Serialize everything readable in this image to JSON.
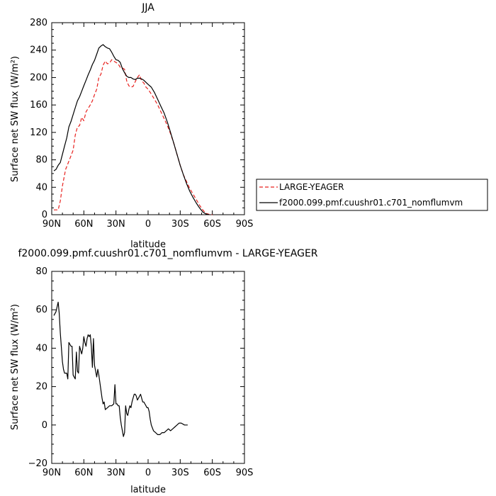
{
  "chart_data": [
    {
      "type": "line",
      "title": "JJA",
      "xlabel": "latitude",
      "ylabel": "Surface net SW flux (W/m²)",
      "xlim": [
        90,
        -90
      ],
      "ylim": [
        0,
        280
      ],
      "x_ticks": [
        "90N",
        "60N",
        "30N",
        "0",
        "30S",
        "60S",
        "90S"
      ],
      "y_ticks": [
        "0",
        "40",
        "80",
        "120",
        "160",
        "200",
        "240",
        "280"
      ],
      "grid": false,
      "legend_placement": "right, outside plot",
      "series": [
        {
          "name": "LARGE-YEAGER",
          "color": "#e8221f",
          "style": "dashed",
          "points": [
            [
              88,
              7
            ],
            [
              84,
              7
            ],
            [
              82,
              20
            ],
            [
              80,
              42
            ],
            [
              77,
              66
            ],
            [
              74,
              78
            ],
            [
              72,
              86
            ],
            [
              70,
              94
            ],
            [
              68,
              116
            ],
            [
              66,
              128
            ],
            [
              64,
              130
            ],
            [
              62,
              142
            ],
            [
              60,
              137
            ],
            [
              58,
              150
            ],
            [
              56,
              155
            ],
            [
              54,
              160
            ],
            [
              52,
              166
            ],
            [
              50,
              175
            ],
            [
              48,
              183
            ],
            [
              46,
              200
            ],
            [
              44,
              205
            ],
            [
              42,
              218
            ],
            [
              40,
              224
            ],
            [
              38,
              220
            ],
            [
              36,
              221
            ],
            [
              34,
              226
            ],
            [
              32,
              224
            ],
            [
              30,
              222
            ],
            [
              28,
              220
            ],
            [
              26,
              215
            ],
            [
              24,
              214
            ],
            [
              22,
              212
            ],
            [
              20,
              195
            ],
            [
              18,
              188
            ],
            [
              16,
              186
            ],
            [
              14,
              187
            ],
            [
              12,
              194
            ],
            [
              10,
              200
            ],
            [
              8,
              204
            ],
            [
              6,
              195
            ],
            [
              4,
              192
            ],
            [
              2,
              186
            ],
            [
              0,
              183
            ],
            [
              -3,
              176
            ],
            [
              -6,
              168
            ],
            [
              -9,
              160
            ],
            [
              -12,
              150
            ],
            [
              -15,
              140
            ],
            [
              -18,
              130
            ],
            [
              -21,
              118
            ],
            [
              -24,
              104
            ],
            [
              -27,
              88
            ],
            [
              -30,
              72
            ],
            [
              -33,
              58
            ],
            [
              -36,
              48
            ],
            [
              -39,
              38
            ],
            [
              -42,
              30
            ],
            [
              -45,
              22
            ],
            [
              -48,
              14
            ],
            [
              -51,
              7
            ],
            [
              -54,
              2
            ],
            [
              -57,
              0.5
            ],
            [
              -60,
              0
            ]
          ]
        },
        {
          "name": "f2000.099.pmf.cuushr01.c701_nomflumvm",
          "color": "#000000",
          "style": "solid",
          "points": [
            [
              88,
              64
            ],
            [
              86,
              66
            ],
            [
              84,
              72
            ],
            [
              82,
              76
            ],
            [
              80,
              88
            ],
            [
              78,
              100
            ],
            [
              76,
              112
            ],
            [
              74,
              128
            ],
            [
              72,
              136
            ],
            [
              70,
              146
            ],
            [
              68,
              156
            ],
            [
              66,
              166
            ],
            [
              64,
              172
            ],
            [
              62,
              180
            ],
            [
              60,
              188
            ],
            [
              58,
              196
            ],
            [
              56,
              204
            ],
            [
              54,
              211
            ],
            [
              52,
              219
            ],
            [
              50,
              225
            ],
            [
              48,
              234
            ],
            [
              46,
              243
            ],
            [
              44,
              246
            ],
            [
              42,
              248
            ],
            [
              40,
              245
            ],
            [
              38,
              243
            ],
            [
              36,
              242
            ],
            [
              34,
              237
            ],
            [
              32,
              231
            ],
            [
              30,
              226
            ],
            [
              28,
              225
            ],
            [
              26,
              222
            ],
            [
              24,
              213
            ],
            [
              22,
              207
            ],
            [
              20,
              202
            ],
            [
              18,
              200
            ],
            [
              16,
              200
            ],
            [
              14,
              198
            ],
            [
              12,
              197
            ],
            [
              10,
              199
            ],
            [
              8,
              199
            ],
            [
              6,
              198
            ],
            [
              4,
              196
            ],
            [
              2,
              193
            ],
            [
              0,
              190
            ],
            [
              -3,
              186
            ],
            [
              -6,
              178
            ],
            [
              -9,
              168
            ],
            [
              -12,
              158
            ],
            [
              -15,
              148
            ],
            [
              -18,
              135
            ],
            [
              -21,
              120
            ],
            [
              -24,
              104
            ],
            [
              -27,
              88
            ],
            [
              -30,
              72
            ],
            [
              -33,
              58
            ],
            [
              -36,
              45
            ],
            [
              -39,
              34
            ],
            [
              -42,
              25
            ],
            [
              -45,
              17
            ],
            [
              -48,
              10
            ],
            [
              -51,
              4
            ],
            [
              -54,
              1
            ],
            [
              -57,
              0
            ]
          ]
        }
      ]
    },
    {
      "type": "line",
      "title": "f2000.099.pmf.cuushr01.c701_nomflumvm - LARGE-YEAGER",
      "xlabel": "latitude",
      "ylabel": "Surface net SW flux (W/m²)",
      "xlim": [
        90,
        -90
      ],
      "ylim": [
        -20,
        80
      ],
      "x_ticks": [
        "90N",
        "60N",
        "30N",
        "0",
        "30S",
        "60S",
        "90S"
      ],
      "y_ticks": [
        "-20",
        "0",
        "20",
        "40",
        "60",
        "80"
      ],
      "grid": false,
      "series": [
        {
          "color": "#000000",
          "style": "solid",
          "points": [
            [
              88,
              57
            ],
            [
              86,
              59
            ],
            [
              84,
              64
            ],
            [
              83,
              58
            ],
            [
              82,
              48
            ],
            [
              80,
              33
            ],
            [
              79,
              29
            ],
            [
              78,
              27
            ],
            [
              76,
              27
            ],
            [
              75,
              24
            ],
            [
              74,
              43
            ],
            [
              73,
              42
            ],
            [
              72,
              41
            ],
            [
              71,
              41
            ],
            [
              70,
              26
            ],
            [
              68,
              24
            ],
            [
              67,
              38
            ],
            [
              66,
              28
            ],
            [
              65,
              27
            ],
            [
              64,
              41
            ],
            [
              63,
              39
            ],
            [
              62,
              37
            ],
            [
              61,
              40
            ],
            [
              60,
              46
            ],
            [
              59,
              43
            ],
            [
              58,
              41
            ],
            [
              57,
              45
            ],
            [
              56,
              47
            ],
            [
              55,
              46
            ],
            [
              54,
              47
            ],
            [
              53,
              41
            ],
            [
              52,
              30
            ],
            [
              51,
              45
            ],
            [
              50,
              31
            ],
            [
              49,
              28
            ],
            [
              48,
              25
            ],
            [
              47,
              29
            ],
            [
              46,
              26
            ],
            [
              45,
              22
            ],
            [
              44,
              18
            ],
            [
              43,
              14
            ],
            [
              42,
              11
            ],
            [
              41,
              12
            ],
            [
              40,
              8
            ],
            [
              38,
              9
            ],
            [
              36,
              10
            ],
            [
              34,
              10
            ],
            [
              32,
              11
            ],
            [
              31,
              21
            ],
            [
              30,
              11
            ],
            [
              29,
              11
            ],
            [
              28,
              10
            ],
            [
              27,
              10
            ],
            [
              26,
              4
            ],
            [
              25,
              0
            ],
            [
              24,
              -3
            ],
            [
              23,
              -6
            ],
            [
              22,
              -4
            ],
            [
              21,
              10
            ],
            [
              20,
              6
            ],
            [
              19,
              5
            ],
            [
              18,
              8
            ],
            [
              17,
              10
            ],
            [
              16,
              9
            ],
            [
              15,
              12
            ],
            [
              14,
              14
            ],
            [
              13,
              16
            ],
            [
              12,
              16
            ],
            [
              11,
              15
            ],
            [
              10,
              13
            ],
            [
              9,
              14
            ],
            [
              8,
              15
            ],
            [
              7,
              16
            ],
            [
              6,
              14
            ],
            [
              5,
              12
            ],
            [
              4,
              12
            ],
            [
              3,
              11
            ],
            [
              2,
              10
            ],
            [
              1,
              9
            ],
            [
              0,
              9
            ],
            [
              -1,
              7
            ],
            [
              -2,
              3
            ],
            [
              -3,
              0
            ],
            [
              -5,
              -3
            ],
            [
              -7,
              -4
            ],
            [
              -9,
              -5
            ],
            [
              -11,
              -5
            ],
            [
              -13,
              -4
            ],
            [
              -15,
              -4
            ],
            [
              -17,
              -3
            ],
            [
              -19,
              -2
            ],
            [
              -21,
              -3
            ],
            [
              -23,
              -2
            ],
            [
              -25,
              -1
            ],
            [
              -27,
              0
            ],
            [
              -29,
              1
            ],
            [
              -31,
              1
            ],
            [
              -34,
              0
            ],
            [
              -37,
              0
            ]
          ]
        }
      ]
    }
  ]
}
